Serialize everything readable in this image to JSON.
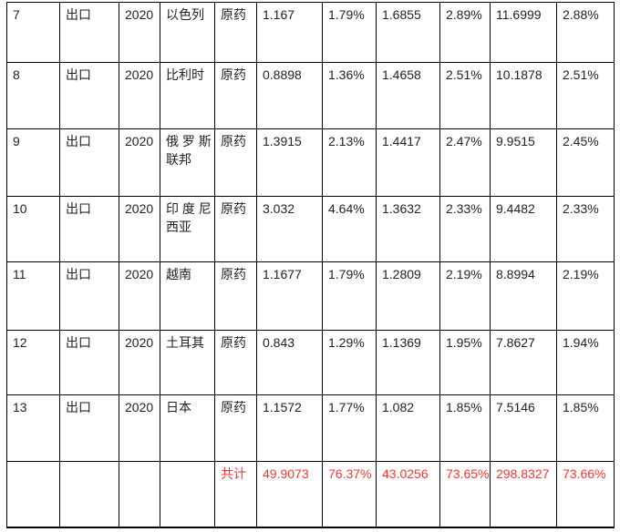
{
  "colors": {
    "border": "#000000",
    "text": "#222222",
    "total_text": "#ff3333",
    "background": "#ffffff"
  },
  "table": {
    "rows": [
      {
        "no": "7",
        "direction": "出口",
        "year": "2020",
        "country_lines": [
          "以色列"
        ],
        "product": "原药",
        "v1": "1.167",
        "p1": "1.79%",
        "v2": "1.6855",
        "p2": "2.89%",
        "v3": "11.6999",
        "p3": "2.88%",
        "is_total": false
      },
      {
        "no": "8",
        "direction": "出口",
        "year": "2020",
        "country_lines": [
          "比利时"
        ],
        "product": "原药",
        "v1": "0.8898",
        "p1": "1.36%",
        "v2": "1.4658",
        "p2": "2.51%",
        "v3": "10.1878",
        "p3": "2.51%",
        "is_total": false
      },
      {
        "no": "9",
        "direction": "出口",
        "year": "2020",
        "country_lines": [
          "俄 罗 斯",
          "联邦"
        ],
        "product": "原药",
        "v1": "1.3915",
        "p1": "2.13%",
        "v2": "1.4417",
        "p2": "2.47%",
        "v3": "9.9515",
        "p3": "2.45%",
        "is_total": false
      },
      {
        "no": "10",
        "direction": "出口",
        "year": "2020",
        "country_lines": [
          "印 度 尼",
          "西亚"
        ],
        "product": "原药",
        "v1": "3.032",
        "p1": "4.64%",
        "v2": "1.3632",
        "p2": "2.33%",
        "v3": "9.4482",
        "p3": "2.33%",
        "is_total": false
      },
      {
        "no": "11",
        "direction": "出口",
        "year": "2020",
        "country_lines": [
          "越南"
        ],
        "product": "原药",
        "v1": "1.1677",
        "p1": "1.79%",
        "v2": "1.2809",
        "p2": "2.19%",
        "v3": "8.8994",
        "p3": "2.19%",
        "is_total": false
      },
      {
        "no": "12",
        "direction": "出口",
        "year": "2020",
        "country_lines": [
          "土耳其"
        ],
        "product": "原药",
        "v1": "0.843",
        "p1": "1.29%",
        "v2": "1.1369",
        "p2": "1.95%",
        "v3": "7.8627",
        "p3": "1.94%",
        "is_total": false
      },
      {
        "no": "13",
        "direction": "出口",
        "year": "2020",
        "country_lines": [
          "日本"
        ],
        "product": "原药",
        "v1": "1.1572",
        "p1": "1.77%",
        "v2": "1.082",
        "p2": "1.85%",
        "v3": "7.5146",
        "p3": "1.85%",
        "is_total": false
      },
      {
        "no": "",
        "direction": "",
        "year": "",
        "country_lines": [],
        "product": "共计",
        "v1": "49.9073",
        "p1": "76.37%",
        "v2": "43.0256",
        "p2": "73.65%",
        "v3": "298.8327",
        "p3": "73.66%",
        "is_total": true
      }
    ]
  }
}
